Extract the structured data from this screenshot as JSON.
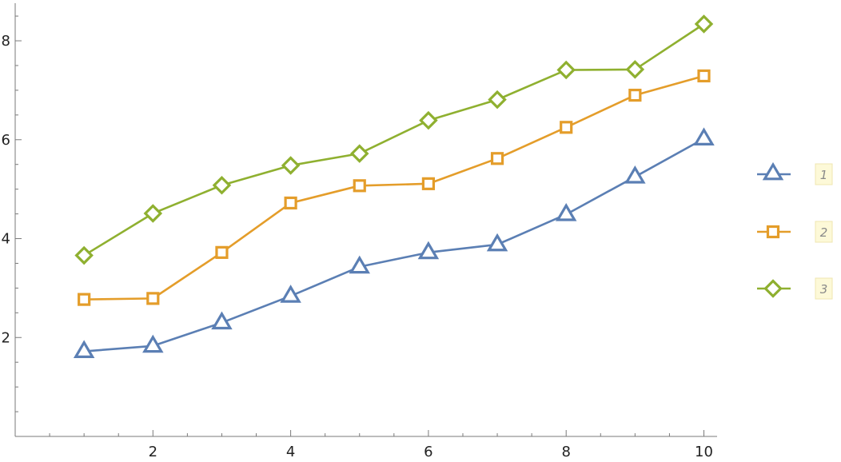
{
  "chart_data": {
    "type": "line",
    "x": [
      1,
      2,
      3,
      4,
      5,
      6,
      7,
      8,
      9,
      10
    ],
    "series": [
      {
        "name": "1",
        "color": "#5b7fb4",
        "marker": "triangle",
        "values": [
          1.72,
          1.83,
          2.3,
          2.84,
          3.43,
          3.72,
          3.88,
          4.49,
          5.25,
          6.02
        ]
      },
      {
        "name": "2",
        "color": "#e49d2a",
        "marker": "square",
        "values": [
          2.77,
          2.79,
          3.72,
          4.72,
          5.07,
          5.11,
          5.62,
          6.25,
          6.9,
          7.29
        ]
      },
      {
        "name": "3",
        "color": "#8fb030",
        "marker": "diamond",
        "values": [
          3.66,
          4.51,
          5.08,
          5.48,
          5.72,
          6.39,
          6.81,
          7.41,
          7.42,
          8.34
        ]
      }
    ],
    "xlim": [
      0,
      10.2
    ],
    "ylim": [
      0,
      8.8
    ],
    "x_ticks": [
      2,
      4,
      6,
      8,
      10
    ],
    "y_ticks": [
      2,
      4,
      6,
      8
    ],
    "title": "",
    "xlabel": "",
    "ylabel": "",
    "grid": false,
    "legend_position": "right",
    "legend_label_background": "#fdf9d8"
  }
}
